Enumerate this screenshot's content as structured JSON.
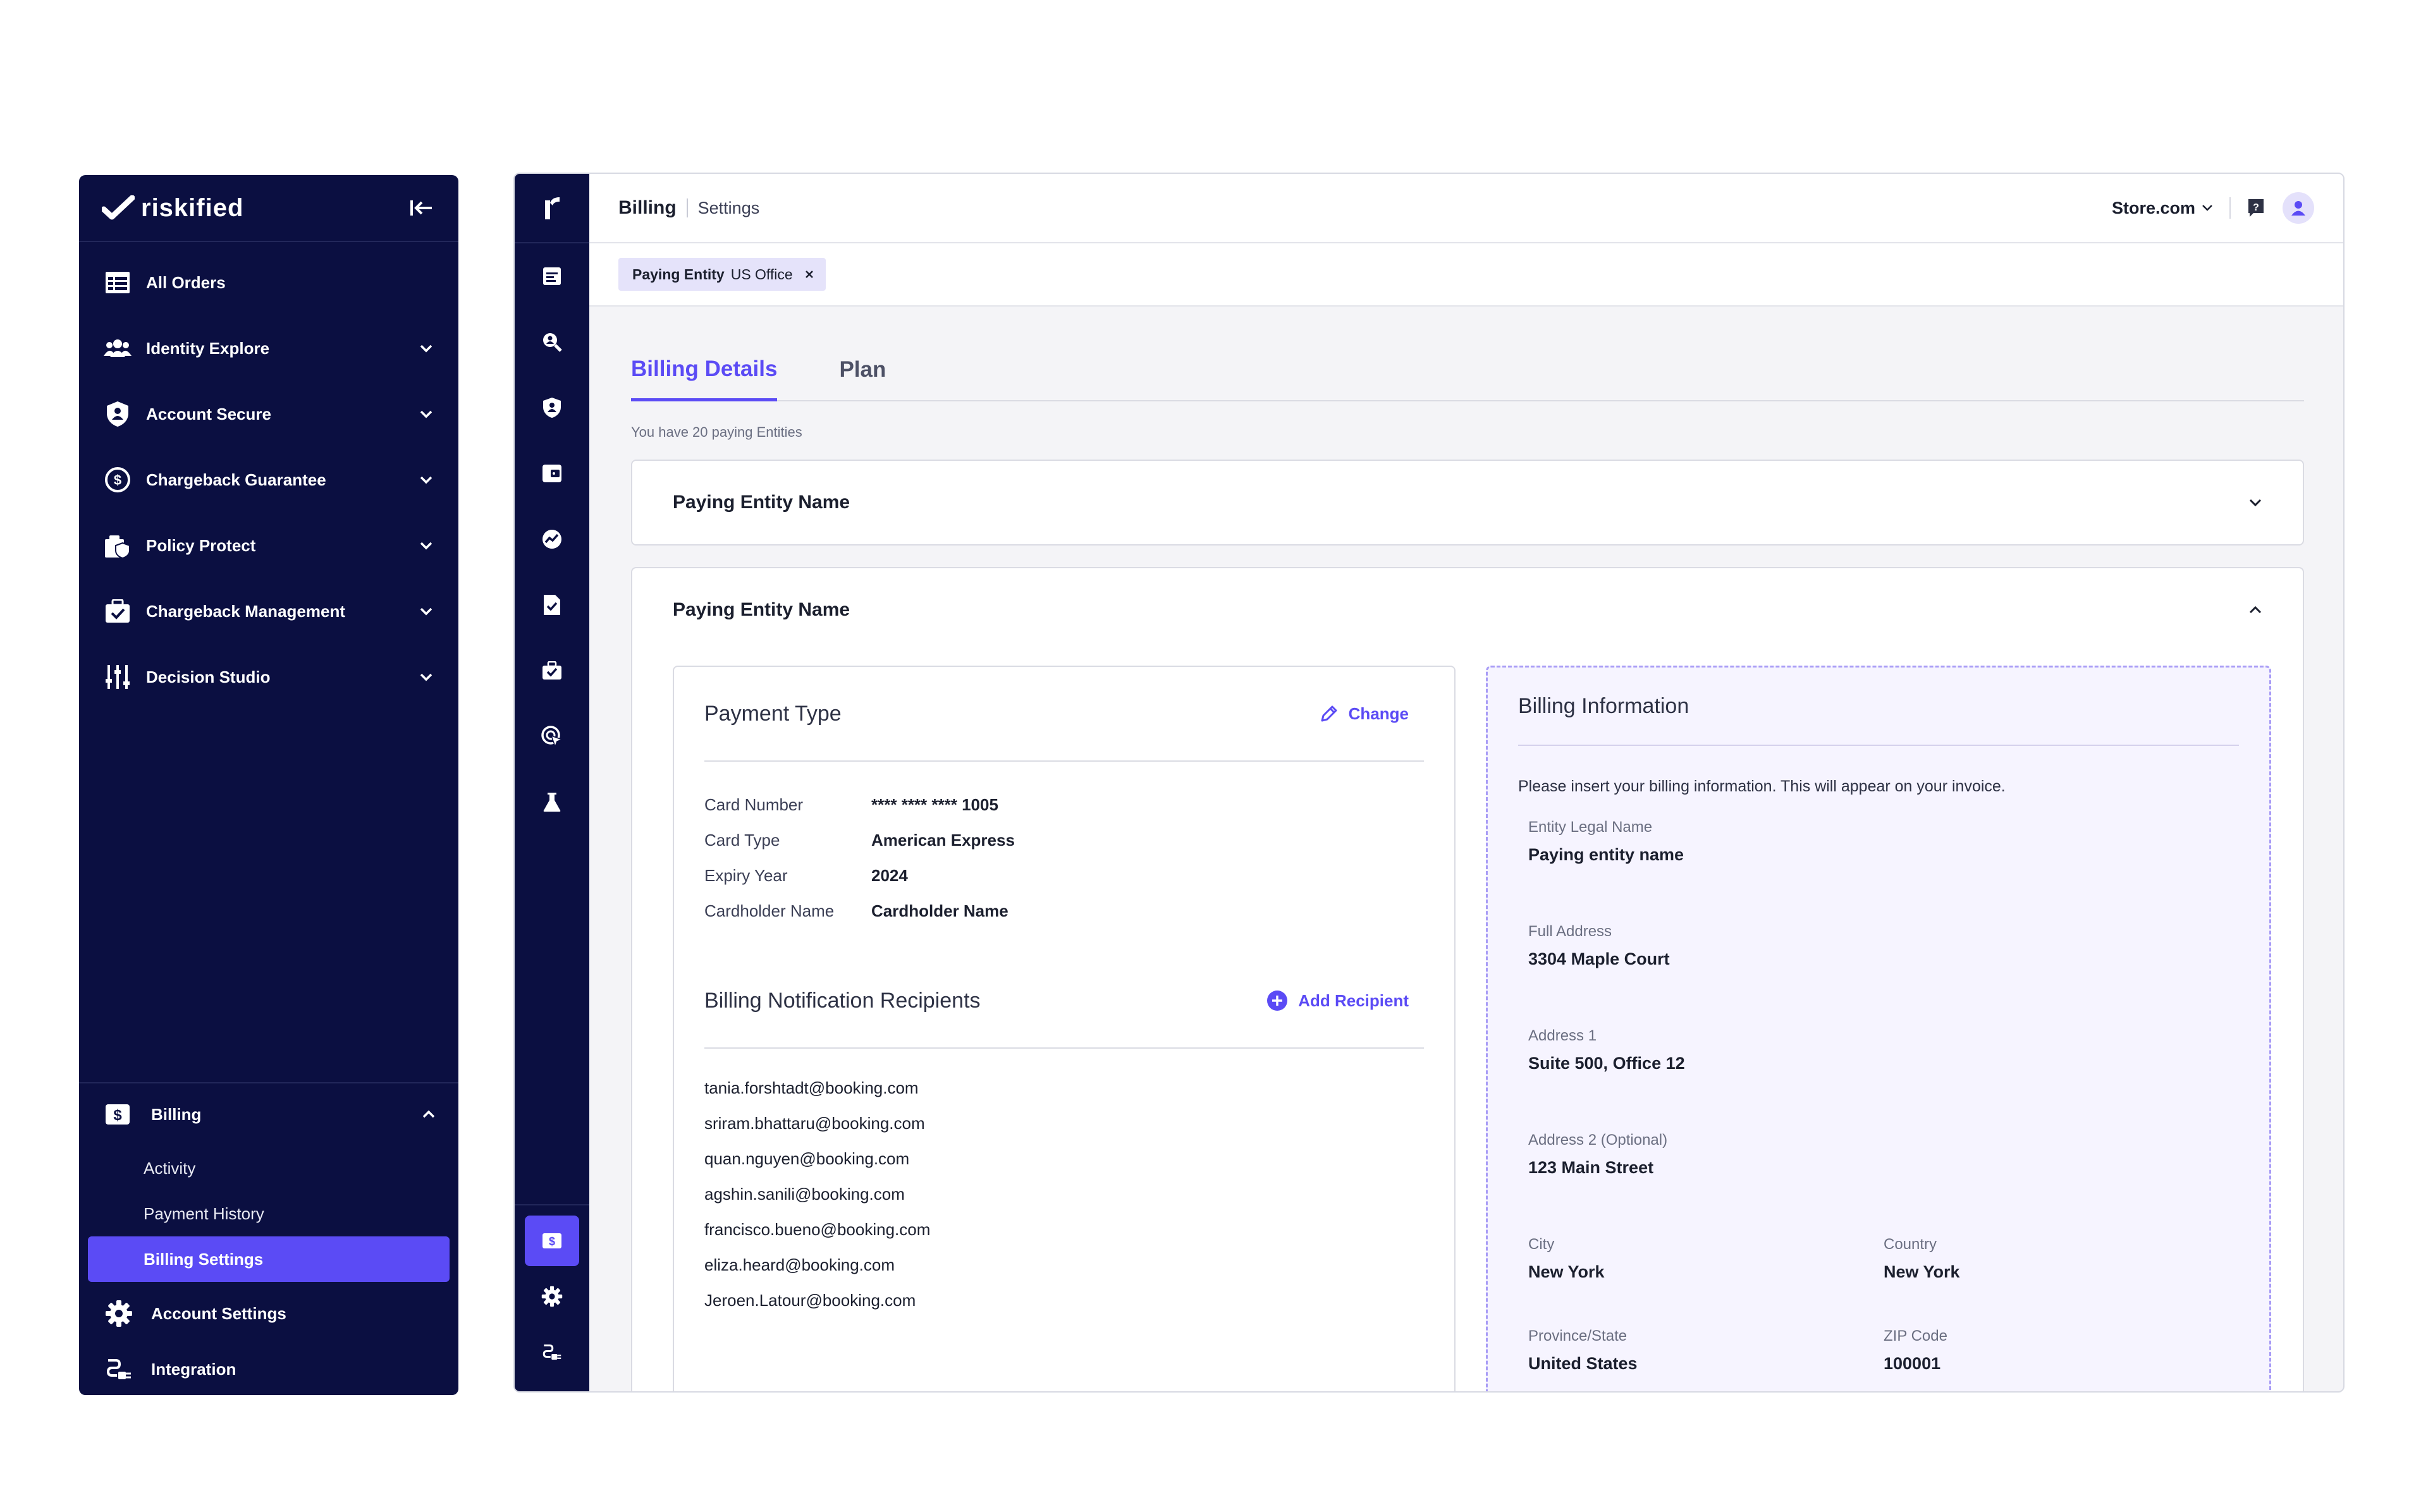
{
  "sidebar": {
    "logo_text": "riskified",
    "items": [
      {
        "label": "All Orders"
      },
      {
        "label": "Identity Explore"
      },
      {
        "label": "Account Secure"
      },
      {
        "label": "Chargeback Guarantee"
      },
      {
        "label": "Policy Protect"
      },
      {
        "label": "Chargeback Management"
      },
      {
        "label": "Decision Studio"
      }
    ],
    "billing": {
      "label": "Billing",
      "sub": [
        "Activity",
        "Payment History",
        "Billing Settings"
      ]
    },
    "account_settings": "Account Settings",
    "integration": "Integration"
  },
  "header": {
    "breadcrumb_main": "Billing",
    "breadcrumb_sub": "Settings",
    "store": "Store.com"
  },
  "filter": {
    "chip_key": "Paying Entity",
    "chip_value": "US Office"
  },
  "tabs": [
    {
      "label": "Billing Details",
      "active": true
    },
    {
      "label": "Plan",
      "active": false
    }
  ],
  "entities_count_text": "You have 20 paying Entities",
  "accordions": [
    {
      "title": "Paying Entity Name",
      "expanded": false
    },
    {
      "title": "Paying Entity Name",
      "expanded": true
    }
  ],
  "payment": {
    "title": "Payment Type",
    "change_label": "Change",
    "rows": [
      {
        "key": "Card Number",
        "value": "**** **** **** 1005"
      },
      {
        "key": "Card Type",
        "value": "American Express"
      },
      {
        "key": "Expiry Year",
        "value": "2024"
      },
      {
        "key": "Cardholder Name",
        "value": "Cardholder Name"
      }
    ],
    "recipients_title": "Billing Notification Recipients",
    "add_recipient_label": "Add Recipient",
    "recipients": [
      "tania.forshtadt@booking.com",
      "sriram.bhattaru@booking.com",
      "quan.nguyen@booking.com",
      "agshin.sanili@booking.com",
      "francisco.bueno@booking.com",
      "eliza.heard@booking.com",
      "Jeroen.Latour@booking.com"
    ]
  },
  "billing_info": {
    "title": "Billing Information",
    "note": "Please insert your billing information. This will appear on your invoice.",
    "fields": [
      {
        "label": "Entity Legal Name",
        "value": "Paying entity name"
      },
      {
        "label": "Full Address",
        "value": "3304 Maple Court"
      },
      {
        "label": "Address 1",
        "value": "Suite 500, Office 12"
      },
      {
        "label": "Address 2 (Optional)",
        "value": "123 Main Street"
      },
      {
        "label": "City",
        "value": "New York"
      },
      {
        "label": "Country",
        "value": "New York"
      },
      {
        "label": "Province/State",
        "value": "United States"
      },
      {
        "label": "ZIP Code",
        "value": "100001"
      }
    ]
  },
  "colors": {
    "navy": "#0b0f41",
    "accent": "#5b4bf5",
    "dashed_border": "#a89cf6"
  }
}
